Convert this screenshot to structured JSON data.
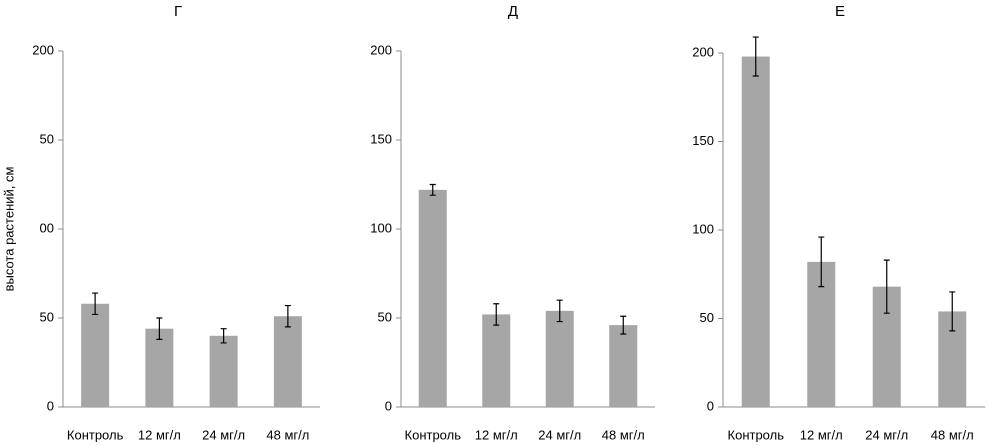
{
  "chart_data": [
    {
      "type": "bar",
      "title": "Г",
      "ylabel": "высота растений, см",
      "categories": [
        "Контроль",
        "12 мг/л",
        "24 мг/л",
        "48 мг/л"
      ],
      "values": [
        58,
        44,
        40,
        51
      ],
      "errors": [
        6,
        6,
        4,
        6
      ],
      "color": "#a6a6a6",
      "ylim": [
        0,
        200
      ],
      "yticks": [
        0,
        {
          "value": 50,
          "label": "50"
        },
        {
          "value": 100,
          "label": "00"
        },
        {
          "value": 150,
          "label": "50"
        },
        200
      ]
    },
    {
      "type": "bar",
      "title": "Д",
      "categories": [
        "Контроль",
        "12 мг/л",
        "24 мг/л",
        "48 мг/л"
      ],
      "values": [
        122,
        52,
        54,
        46
      ],
      "errors": [
        3,
        6,
        6,
        5
      ],
      "color": "#a6a6a6",
      "ylim": [
        0,
        200
      ],
      "yticks": [
        0,
        50,
        100,
        150,
        200
      ]
    },
    {
      "type": "bar",
      "title": "Е",
      "categories": [
        "Контроль",
        "12 мг/л",
        "24 мг/л",
        "48 мг/л"
      ],
      "values": [
        198,
        82,
        68,
        54
      ],
      "errors": [
        11,
        14,
        15,
        11
      ],
      "color": "#a6a6a6",
      "ylim": [
        0,
        200
      ],
      "yticks": [
        0,
        50,
        100,
        150,
        200
      ]
    }
  ]
}
